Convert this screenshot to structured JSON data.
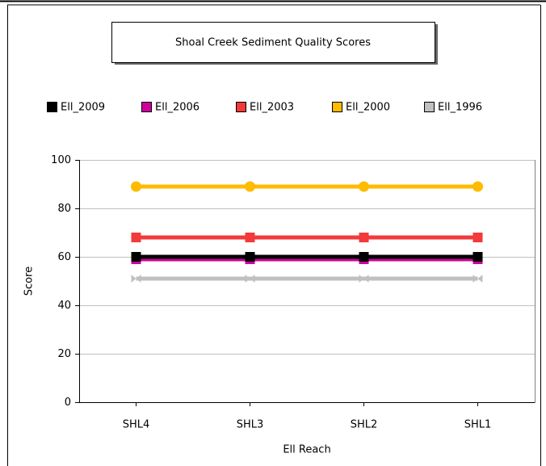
{
  "chart_data": {
    "type": "line",
    "title": "Shoal Creek Sediment Quality Scores",
    "x_label": "Ell Reach",
    "y_label": "Score",
    "categories": [
      "SHL4",
      "SHL3",
      "SHL2",
      "SHL1"
    ],
    "series": [
      {
        "name": "Ell_2009",
        "color": "#000000",
        "marker": "square",
        "values": [
          60,
          60,
          60,
          60
        ]
      },
      {
        "name": "Ell_2006",
        "color": "#d0009c",
        "marker": "square",
        "values": [
          59,
          59,
          59,
          59
        ]
      },
      {
        "name": "Ell_2003",
        "color": "#f23a3a",
        "marker": "square",
        "values": [
          68,
          68,
          68,
          68
        ]
      },
      {
        "name": "Ell_2000",
        "color": "#ffbb00",
        "marker": "circle",
        "values": [
          89,
          89,
          89,
          89
        ]
      },
      {
        "name": "Ell_1996",
        "color": "#c0c0c0",
        "marker": "bowtie",
        "values": [
          51,
          51,
          51,
          51
        ]
      }
    ],
    "ylim": [
      0,
      100
    ],
    "yticks": [
      0,
      20,
      40,
      60,
      80,
      100
    ],
    "grid": true
  }
}
